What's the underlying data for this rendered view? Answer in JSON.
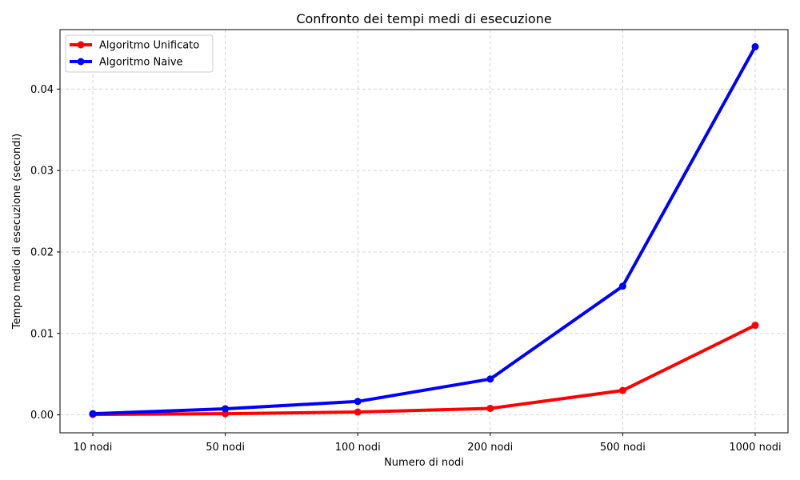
{
  "chart_data": {
    "type": "line",
    "title": "Confronto dei tempi medi di esecuzione",
    "xlabel": "Numero di nodi",
    "ylabel": "Tempo medio di esecuzione (secondi)",
    "categories": [
      "10 nodi",
      "50 nodi",
      "100 nodi",
      "200 nodi",
      "500 nodi",
      "1000 nodi"
    ],
    "ylim": [
      -0.0022,
      0.0473
    ],
    "yticks": [
      0.0,
      0.01,
      0.02,
      0.03,
      0.04
    ],
    "ytick_labels": [
      "0.00",
      "0.01",
      "0.02",
      "0.03",
      "0.04"
    ],
    "grid": true,
    "legend_position": "top-left",
    "series": [
      {
        "name": "Algoritmo Unificato",
        "color": "#ff0000",
        "values": [
          5e-05,
          0.00015,
          0.00035,
          0.0008,
          0.003,
          0.011
        ]
      },
      {
        "name": "Algoritmo Naive",
        "color": "#0000ff",
        "values": [
          0.00015,
          0.00075,
          0.00165,
          0.0044,
          0.0158,
          0.0452
        ]
      }
    ]
  }
}
